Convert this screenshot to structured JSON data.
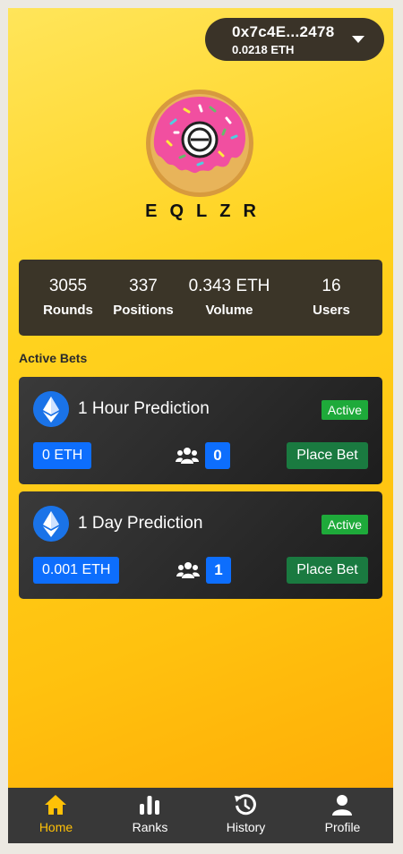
{
  "wallet": {
    "address": "0x7c4E...2478",
    "balance": "0.0218 ETH",
    "dropdown_icon": "chevron-down-icon"
  },
  "brand": {
    "name": "EQLZR",
    "logo_icon": "donut-logo-icon"
  },
  "stats": [
    {
      "value": "3055",
      "label": "Rounds"
    },
    {
      "value": "337",
      "label": "Positions"
    },
    {
      "value": "0.343 ETH",
      "label": "Volume"
    },
    {
      "value": "16",
      "label": "Users"
    }
  ],
  "active_bets": {
    "title": "Active Bets",
    "items": [
      {
        "title": "1 Hour Prediction",
        "status": "Active",
        "amount": "0 ETH",
        "participants": "0",
        "button": "Place Bet",
        "icon": "ethereum-icon"
      },
      {
        "title": "1 Day Prediction",
        "status": "Active",
        "amount": "0.001 ETH",
        "participants": "1",
        "button": "Place Bet",
        "icon": "ethereum-icon"
      }
    ]
  },
  "nav": {
    "items": [
      {
        "label": "Home",
        "icon": "home-icon",
        "active": true
      },
      {
        "label": "Ranks",
        "icon": "bar-chart-icon",
        "active": false
      },
      {
        "label": "History",
        "icon": "history-icon",
        "active": false
      },
      {
        "label": "Profile",
        "icon": "user-icon",
        "active": false
      }
    ]
  },
  "colors": {
    "accent": "#ffc107",
    "status_active": "#1eaa3a",
    "primary_blue": "#0d6efd",
    "place_bet": "#1a7a40",
    "panel": "#3b3528"
  }
}
